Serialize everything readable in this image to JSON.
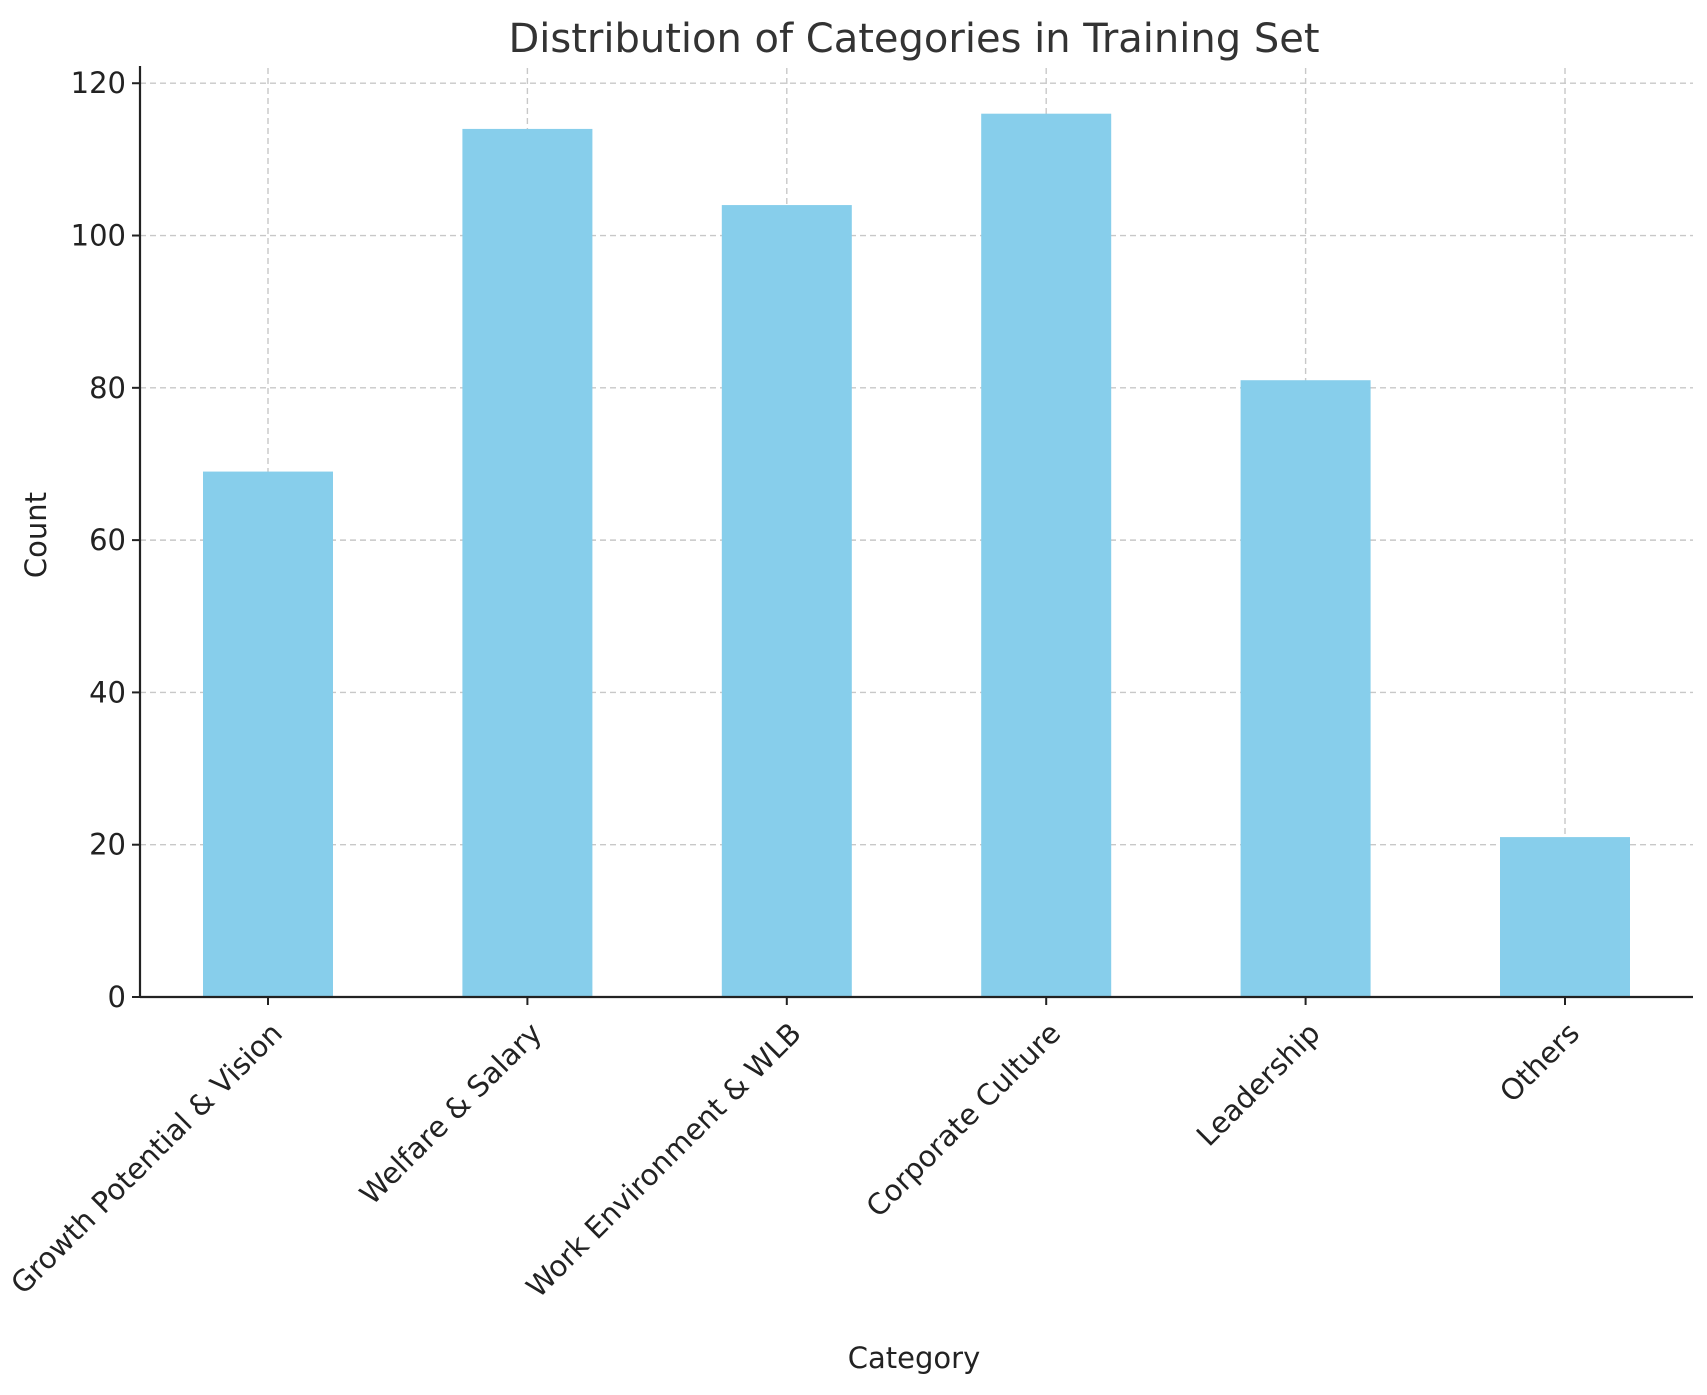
{
  "chart_data": {
    "type": "bar",
    "title": "Distribution of Categories in Training Set",
    "xlabel": "Category",
    "ylabel": "Count",
    "categories": [
      "Growth Potential & Vision",
      "Welfare & Salary",
      "Work Environment & WLB",
      "Corporate Culture",
      "Leadership",
      "Others"
    ],
    "values": [
      69,
      114,
      104,
      116,
      81,
      21
    ],
    "ylim": [
      0,
      122
    ],
    "yticks": [
      0,
      20,
      40,
      60,
      80,
      100,
      120
    ],
    "grid": true,
    "legend": "none",
    "bar_color": "#87ceeb"
  }
}
